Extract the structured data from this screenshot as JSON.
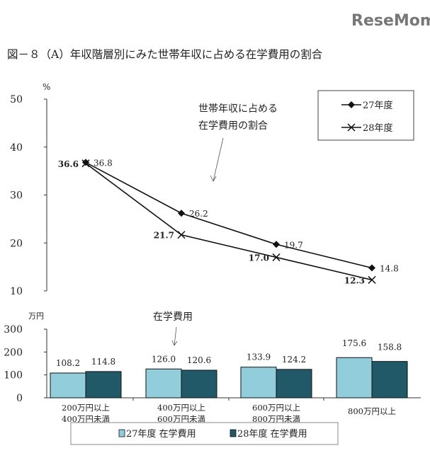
{
  "logo": "ReseMom",
  "title": "図－８（A）年収階層別にみた世帯年収に占める在学費用の割合",
  "chart_data": [
    {
      "type": "line",
      "ylabel": "%",
      "ylim": [
        10,
        50
      ],
      "yticks": [
        10,
        20,
        30,
        40,
        50
      ],
      "annotation": [
        "世帯年収に占める",
        "在学費用の割合"
      ],
      "legend": "top-right",
      "categories": [
        "200万円以上400万円未満",
        "400万円以上600万円未満",
        "600万円以上800万円未満",
        "800万円以上"
      ],
      "series": [
        {
          "name": "27年度",
          "marker": "diamond",
          "values": [
            36.8,
            26.2,
            19.7,
            14.8
          ],
          "labels": [
            "36.8",
            "26.2",
            "19.7",
            "14.8"
          ]
        },
        {
          "name": "28年度",
          "marker": "x",
          "values": [
            36.6,
            21.7,
            17.0,
            12.3
          ],
          "labels": [
            "36.6",
            "21.7",
            "17.0",
            "12.3"
          ]
        }
      ]
    },
    {
      "type": "bar",
      "ylabel": "万円",
      "ylim": [
        0,
        300
      ],
      "yticks": [
        0,
        100,
        200,
        300
      ],
      "annotation": "在学費用",
      "legend": "bottom",
      "categories": [
        [
          "200万円以上",
          "400万円未満"
        ],
        [
          "400万円以上",
          "600万円未満"
        ],
        [
          "600万円以上",
          "800万円未満"
        ],
        [
          "800万円以上"
        ]
      ],
      "series": [
        {
          "name": "27年度 在学費用",
          "color": "#92cddc",
          "values": [
            108.2,
            126.0,
            133.9,
            175.6
          ],
          "labels": [
            "108.2",
            "126.0",
            "133.9",
            "175.6"
          ]
        },
        {
          "name": "28年度 在学費用",
          "color": "#215968",
          "values": [
            114.8,
            120.6,
            124.2,
            158.8
          ],
          "labels": [
            "114.8",
            "120.6",
            "124.2",
            "158.8"
          ]
        }
      ]
    }
  ]
}
